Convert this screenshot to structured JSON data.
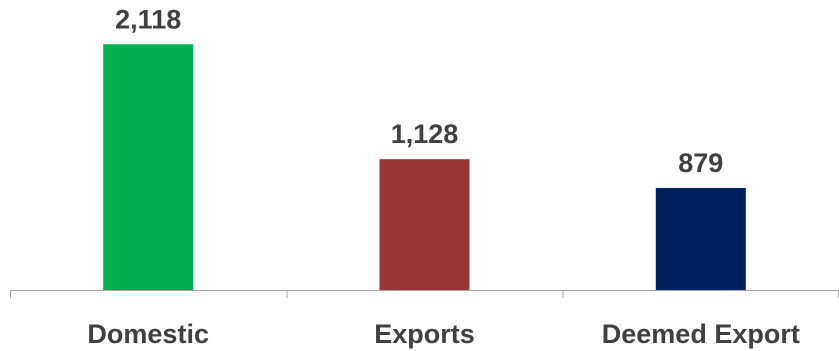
{
  "chart_data": {
    "type": "bar",
    "title": "",
    "xlabel": "",
    "ylabel": "",
    "categories": [
      "Domestic",
      "Exports",
      "Deemed Export"
    ],
    "values": [
      2118,
      1128,
      879
    ],
    "data_labels": [
      "2,118",
      "1,128",
      "879"
    ],
    "colors": [
      "#00b050",
      "#953735",
      "#002060"
    ],
    "ylim": [
      0,
      2500
    ],
    "grid": false,
    "legend": "none"
  }
}
